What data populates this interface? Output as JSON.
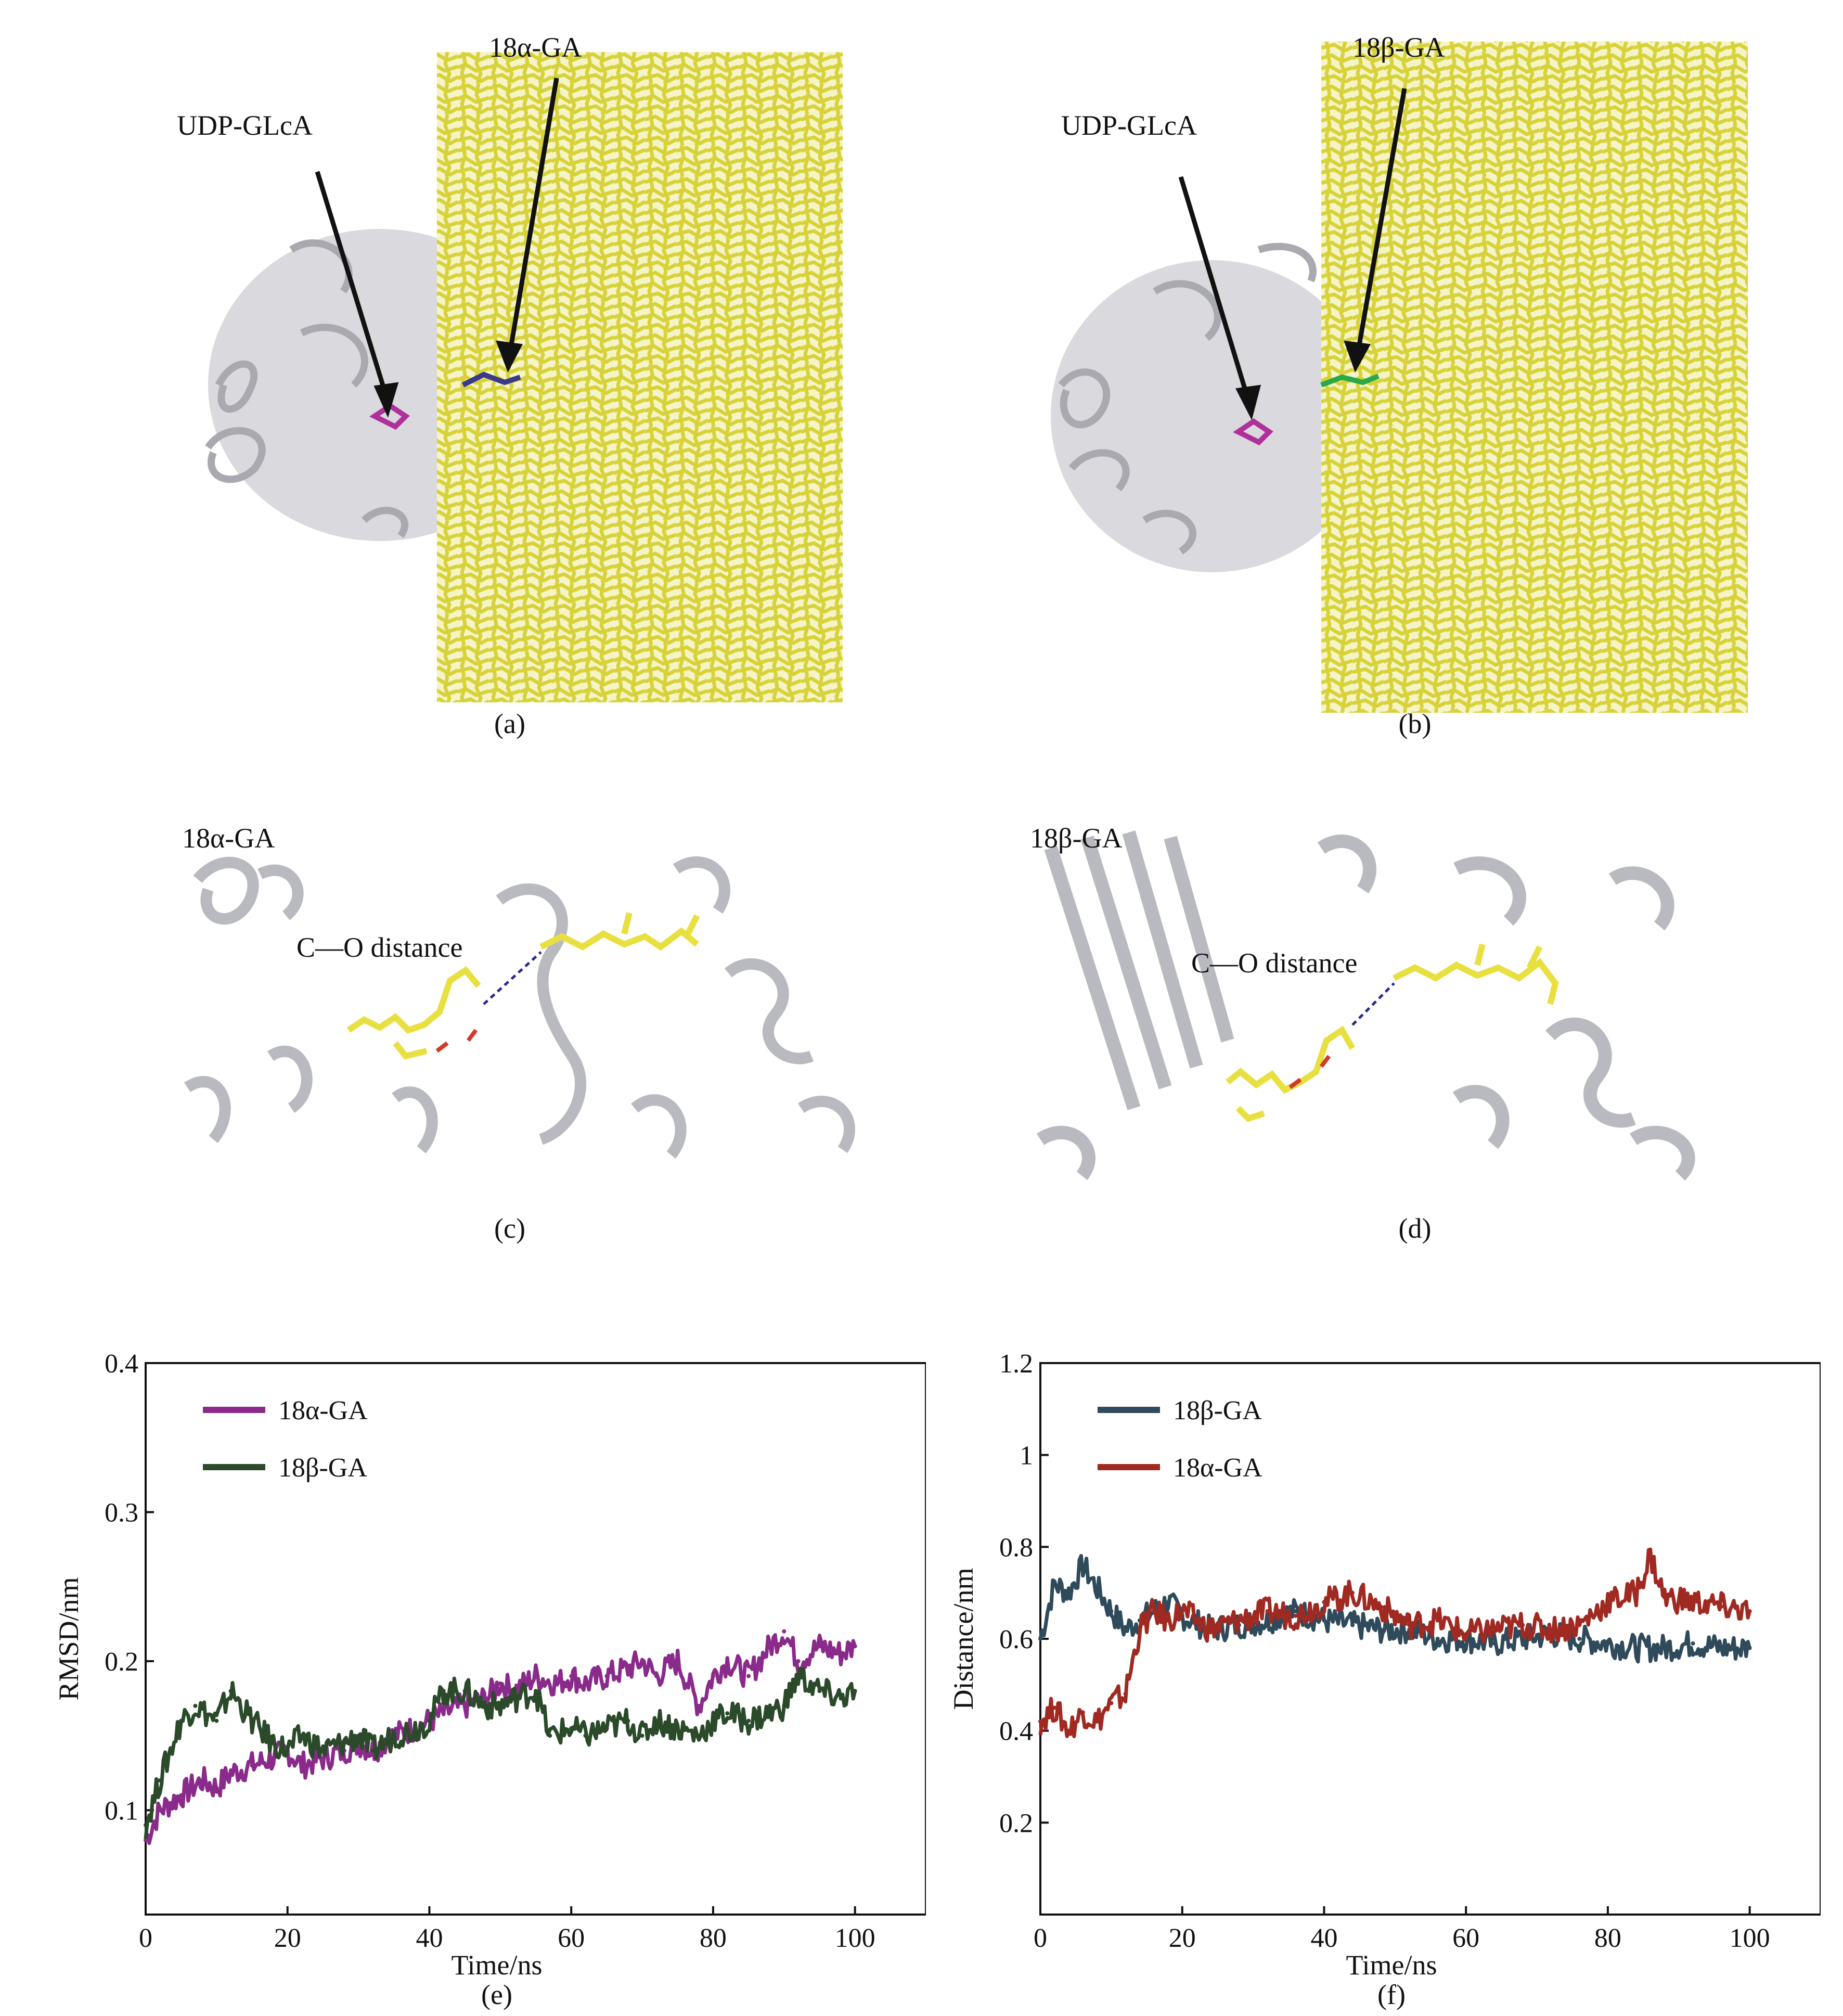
{
  "panel_a": {
    "label_substrate": "18α-GA",
    "label_donor": "UDP-GLcA",
    "caption": "(a)"
  },
  "panel_b": {
    "label_substrate": "18β-GA",
    "label_donor": "UDP-GLcA",
    "caption": "(b)"
  },
  "panel_c": {
    "corner_label": "18α-GA",
    "distance_label": "C—O distance",
    "caption": "(c)"
  },
  "panel_d": {
    "corner_label": "18β-GA",
    "distance_label": "C—O distance",
    "caption": "(d)"
  },
  "colors": {
    "protein": "#c8c8cc",
    "membrane": "#e8e85a",
    "udp_glca": "#b0309a",
    "alpha_ligand": "#3a3a8a",
    "beta_ligand": "#2aa84a",
    "ligand_stick": "#e8e040",
    "series_e_alpha": "#8a2a8a",
    "series_e_beta": "#2a4a2a",
    "series_f_beta": "#2f4a5a",
    "series_f_alpha": "#a02a22"
  },
  "chart_data": [
    {
      "type": "line",
      "caption": "(e)",
      "xlabel": "Time/ns",
      "ylabel": "RMSD/nm",
      "xlim": [
        0,
        110
      ],
      "ylim": [
        0.03,
        0.4
      ],
      "xticks": [
        0,
        20,
        40,
        60,
        80,
        100
      ],
      "yticks": [
        0.1,
        0.2,
        0.3,
        0.4
      ],
      "legend_position": "top-left",
      "series": [
        {
          "name": "18α-GA",
          "x": [
            0,
            2,
            5,
            8,
            10,
            12,
            15,
            18,
            20,
            22,
            25,
            28,
            30,
            32,
            35,
            38,
            40,
            42,
            45,
            48,
            50,
            52,
            55,
            58,
            60,
            62,
            65,
            68,
            70,
            72,
            75,
            78,
            80,
            82,
            85,
            88,
            90,
            92,
            95,
            98,
            100
          ],
          "y": [
            0.08,
            0.1,
            0.11,
            0.12,
            0.115,
            0.125,
            0.13,
            0.135,
            0.14,
            0.13,
            0.135,
            0.14,
            0.145,
            0.14,
            0.15,
            0.155,
            0.16,
            0.165,
            0.17,
            0.175,
            0.185,
            0.18,
            0.19,
            0.185,
            0.19,
            0.185,
            0.19,
            0.195,
            0.2,
            0.19,
            0.2,
            0.17,
            0.19,
            0.2,
            0.19,
            0.21,
            0.22,
            0.2,
            0.21,
            0.205,
            0.21
          ]
        },
        {
          "name": "18β-GA",
          "x": [
            0,
            2,
            5,
            7,
            10,
            12,
            15,
            18,
            20,
            22,
            25,
            28,
            30,
            32,
            35,
            38,
            40,
            42,
            45,
            48,
            50,
            52,
            55,
            57,
            60,
            62,
            65,
            68,
            70,
            72,
            75,
            78,
            80,
            82,
            85,
            88,
            90,
            92,
            95,
            98,
            100
          ],
          "y": [
            0.09,
            0.12,
            0.16,
            0.17,
            0.16,
            0.18,
            0.16,
            0.145,
            0.14,
            0.15,
            0.14,
            0.145,
            0.15,
            0.14,
            0.15,
            0.155,
            0.16,
            0.18,
            0.18,
            0.17,
            0.17,
            0.175,
            0.18,
            0.15,
            0.155,
            0.15,
            0.155,
            0.16,
            0.15,
            0.16,
            0.155,
            0.15,
            0.16,
            0.165,
            0.16,
            0.165,
            0.17,
            0.19,
            0.18,
            0.175,
            0.18
          ]
        }
      ]
    },
    {
      "type": "line",
      "caption": "(f)",
      "xlabel": "Time/ns",
      "ylabel": "Distance/nm",
      "xlim": [
        0,
        110
      ],
      "ylim": [
        0,
        1.2
      ],
      "xticks": [
        0,
        20,
        40,
        60,
        80,
        100
      ],
      "yticks": [
        0.2,
        0.4,
        0.6,
        0.8,
        1.0,
        1.2
      ],
      "legend_position": "top-left",
      "series": [
        {
          "name": "18β-GA",
          "x": [
            0,
            2,
            4,
            6,
            8,
            10,
            12,
            14,
            16,
            18,
            20,
            24,
            28,
            32,
            36,
            40,
            44,
            48,
            52,
            56,
            60,
            64,
            68,
            72,
            76,
            80,
            84,
            88,
            92,
            96,
            100
          ],
          "y": [
            0.6,
            0.72,
            0.7,
            0.76,
            0.71,
            0.66,
            0.62,
            0.64,
            0.66,
            0.68,
            0.65,
            0.62,
            0.63,
            0.64,
            0.66,
            0.64,
            0.63,
            0.62,
            0.62,
            0.6,
            0.6,
            0.59,
            0.6,
            0.61,
            0.6,
            0.59,
            0.58,
            0.58,
            0.59,
            0.58,
            0.58
          ]
        },
        {
          "name": "18α-GA",
          "x": [
            0,
            2,
            4,
            6,
            8,
            10,
            12,
            14,
            16,
            18,
            20,
            24,
            28,
            32,
            36,
            40,
            44,
            48,
            52,
            56,
            60,
            64,
            68,
            72,
            76,
            80,
            84,
            86,
            88,
            92,
            96,
            100
          ],
          "y": [
            0.42,
            0.45,
            0.4,
            0.44,
            0.42,
            0.46,
            0.48,
            0.62,
            0.66,
            0.64,
            0.66,
            0.62,
            0.64,
            0.66,
            0.65,
            0.68,
            0.7,
            0.67,
            0.63,
            0.64,
            0.61,
            0.62,
            0.63,
            0.62,
            0.63,
            0.68,
            0.7,
            0.78,
            0.69,
            0.68,
            0.67,
            0.66
          ]
        }
      ]
    }
  ]
}
